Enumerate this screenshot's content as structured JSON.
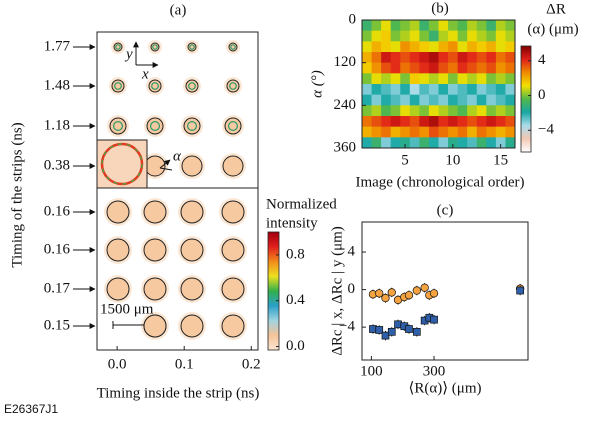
{
  "figure_id": "E26367J1",
  "chart_data": [
    {
      "type": "image_grid",
      "panel": "(a)",
      "xlabel": "Timing inside the strip (ns)",
      "ylabel": "Timing of the strips (ns)",
      "row_labels": [
        "1.77",
        "1.48",
        "1.18",
        "0.38",
        "0.16",
        "0.16",
        "0.17",
        "0.15"
      ],
      "xlim": [
        -0.03,
        0.21
      ],
      "xticks": [
        {
          "value": 0,
          "label": "0.0"
        },
        0.1,
        0.2
      ],
      "annotations": [
        "x",
        "y",
        "α",
        "1500 μm"
      ],
      "spot_color": "#f7c9a0",
      "colorbar": {
        "label": [
          "Normalized",
          "intensity"
        ],
        "clim": [
          -0.03,
          1.0
        ],
        "ticks": [
          {
            "value": 0,
            "label": "0.0"
          },
          0.4,
          0.8
        ],
        "colormap": [
          "#fbe6d2",
          "#f6c39a",
          "#9fd3e0",
          "#2aa0c8",
          "#34b04a",
          "#eee020",
          "#f28a1c",
          "#e0201c",
          "#a00010"
        ]
      }
    },
    {
      "type": "heatmap",
      "panel": "(b)",
      "xlabel": "Image (chronological order)",
      "ylabel": "α (°)",
      "x": [
        1,
        2,
        3,
        4,
        5,
        6,
        7,
        8,
        9,
        10,
        11,
        12,
        13,
        14,
        15,
        16
      ],
      "y_bins": [
        0,
        30,
        60,
        90,
        120,
        150,
        180,
        210,
        240,
        270,
        300,
        330,
        360
      ],
      "xlim": [
        0.5,
        16.5
      ],
      "xticks": [
        5,
        10,
        15
      ],
      "ylim": [
        0,
        360
      ],
      "yticks": [
        0,
        120,
        240,
        360
      ],
      "y_inverted": true,
      "z": [
        [
          -1,
          0,
          1,
          -0.5,
          0,
          0.5,
          -1,
          0,
          1,
          0,
          -0.5,
          0.5,
          0,
          -1,
          0.5,
          0
        ],
        [
          0,
          1,
          1.5,
          0,
          0.5,
          1,
          0,
          -1,
          0.5,
          1,
          0,
          1,
          0.5,
          0,
          1,
          0.5
        ],
        [
          1,
          2,
          1.5,
          1,
          2.5,
          2,
          1.5,
          1,
          2,
          2.5,
          1,
          2,
          1.5,
          2,
          1,
          1.5
        ],
        [
          2,
          3,
          4.5,
          4,
          3.5,
          4,
          4.5,
          5,
          4,
          3.5,
          4.5,
          4,
          3.5,
          4,
          3,
          3.5
        ],
        [
          1.5,
          2.5,
          3.5,
          4,
          3,
          3.5,
          4,
          4.5,
          3.5,
          3,
          4,
          3.5,
          3,
          3.5,
          2.5,
          3
        ],
        [
          0,
          1,
          0.5,
          1,
          0,
          1.5,
          1,
          0.5,
          1,
          0,
          1,
          0.5,
          1,
          0,
          0.5,
          0
        ],
        [
          -3,
          -2,
          -2.5,
          -3,
          -2,
          -3.5,
          -2.5,
          -3,
          -2,
          -3,
          -2.5,
          -2,
          -3,
          -2.5,
          -2,
          -3
        ],
        [
          -2,
          -3,
          -2,
          -2.5,
          -3,
          -2,
          -3,
          -2.5,
          -3,
          -2,
          -2.5,
          -3,
          -2,
          -3,
          -2.5,
          -2
        ],
        [
          0,
          0.5,
          -0.5,
          0,
          1,
          0.5,
          0,
          1,
          0.5,
          0,
          -0.5,
          0.5,
          1,
          0,
          0.5,
          0
        ],
        [
          3,
          3.5,
          4,
          4.5,
          4,
          3.5,
          4.5,
          5,
          4,
          4.5,
          4,
          3.5,
          4,
          4.5,
          4,
          3.5
        ],
        [
          2,
          2.5,
          3,
          2,
          2.5,
          3,
          2.5,
          3.5,
          3,
          2.5,
          3,
          2,
          3,
          2.5,
          2,
          2.5
        ],
        [
          -2,
          -1,
          -3,
          -2,
          -1.5,
          -2.5,
          -1,
          -2,
          -3,
          -1.5,
          -2,
          -2.5,
          -1,
          -2,
          -3,
          -1.5
        ]
      ],
      "colorbar": {
        "label": [
          "ΔR",
          "(α) (μm)"
        ],
        "clim": [
          -6.5,
          5.7
        ],
        "ticks": [
          4,
          0,
          {
            "value": -4,
            "label": "−4"
          }
        ],
        "colormap": [
          "#ffffff",
          "#f3c8b4",
          "#a9dcea",
          "#19a7a5",
          "#52b84a",
          "#f3e000",
          "#f08a00",
          "#e0201a",
          "#800000"
        ]
      }
    },
    {
      "type": "scatter",
      "panel": "(c)",
      "xlabel": "⟨R(α)⟩ (μm)",
      "ylabel": "ΔRc | x, ΔRc | y (μm)",
      "xlim": [
        70,
        600
      ],
      "xticks": [
        100,
        300
      ],
      "ylim": [
        -7.5,
        7.2
      ],
      "yticks": [
        4,
        0,
        {
          "value": -4,
          "label": "−4"
        }
      ],
      "series": [
        {
          "color": "#f4a340",
          "marker": "circle",
          "x": [
            105,
            125,
            145,
            165,
            185,
            205,
            220,
            245,
            270,
            285,
            300,
            575
          ],
          "values": [
            -0.5,
            -0.4,
            -0.9,
            -0.3,
            -1.1,
            -0.8,
            -0.6,
            -0.1,
            0.2,
            -0.6,
            -0.4,
            0.1
          ],
          "errors": [
            0.5,
            0.5,
            0.5,
            0.5,
            0.5,
            0.5,
            0.5,
            0.5,
            0.5,
            0.5,
            0.5,
            0.5
          ]
        },
        {
          "color": "#2f5fa8",
          "marker": "square",
          "x": [
            105,
            125,
            145,
            165,
            185,
            205,
            220,
            245,
            270,
            285,
            300,
            575
          ],
          "values": [
            -4.2,
            -4.3,
            -4.9,
            -4.5,
            -3.7,
            -3.9,
            -4.2,
            -4.5,
            -3.3,
            -3.0,
            -3.2,
            -0.1
          ],
          "errors": [
            0.5,
            0.5,
            0.5,
            0.5,
            0.5,
            0.5,
            0.5,
            0.5,
            0.5,
            0.5,
            0.5,
            0.5
          ]
        }
      ]
    }
  ]
}
